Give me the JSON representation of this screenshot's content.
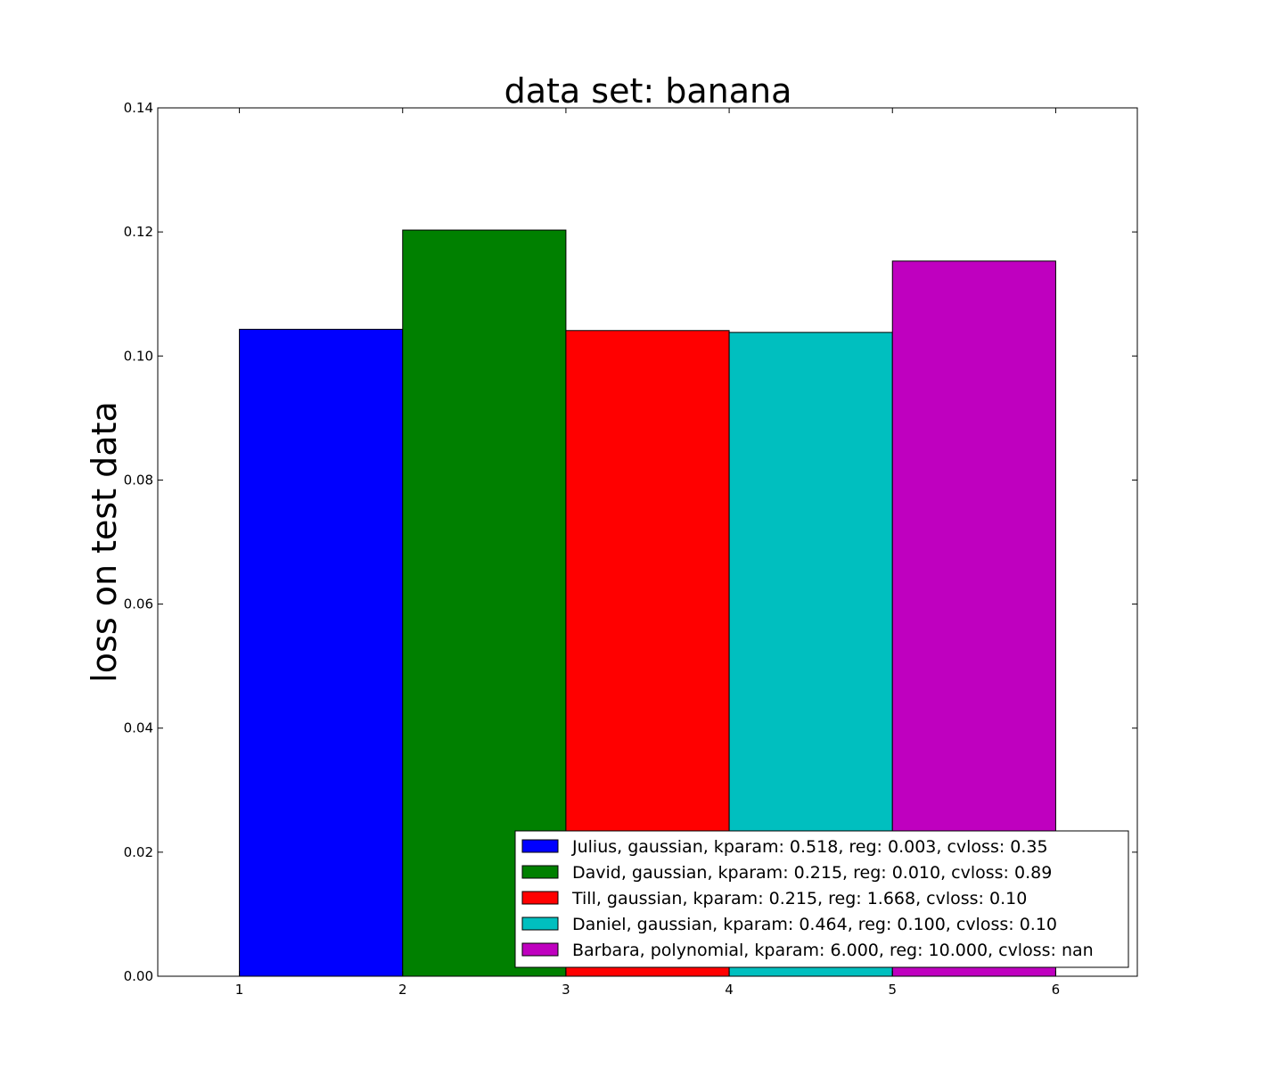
{
  "chart_data": {
    "type": "bar",
    "title": "data set: banana",
    "xlabel": "",
    "ylabel": "loss on test data",
    "xlim": [
      0.5,
      6.5
    ],
    "ylim": [
      0,
      0.14
    ],
    "xticks": [
      "1",
      "2",
      "3",
      "4",
      "5",
      "6"
    ],
    "yticks": [
      "0.00",
      "0.02",
      "0.04",
      "0.06",
      "0.08",
      "0.10",
      "0.12",
      "0.14"
    ],
    "grid": false,
    "legend_position": "lower-right",
    "bars": [
      {
        "label": "Julius, gaussian, kparam: 0.518, reg: 0.003, cvloss: 0.35",
        "x_start": 1,
        "x_end": 2,
        "value": 0.1043,
        "color": "#0000ff"
      },
      {
        "label": "David, gaussian, kparam: 0.215, reg: 0.010, cvloss: 0.89",
        "x_start": 2,
        "x_end": 3,
        "value": 0.1203,
        "color": "#008000"
      },
      {
        "label": "Till, gaussian, kparam: 0.215, reg: 1.668, cvloss: 0.10",
        "x_start": 3,
        "x_end": 4,
        "value": 0.1041,
        "color": "#ff0000"
      },
      {
        "label": "Daniel, gaussian, kparam: 0.464, reg: 0.100, cvloss: 0.10",
        "x_start": 4,
        "x_end": 5,
        "value": 0.1038,
        "color": "#00bfbf"
      },
      {
        "label": "Barbara, polynomial, kparam: 6.000, reg: 10.000, cvloss: nan",
        "x_start": 5,
        "x_end": 6,
        "value": 0.1153,
        "color": "#bf00bf"
      }
    ]
  }
}
